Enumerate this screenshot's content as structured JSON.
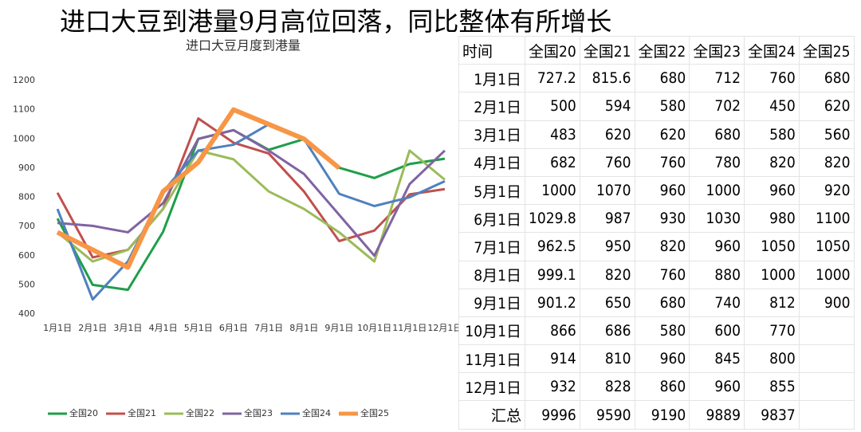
{
  "title": "进口大豆到港量9月高位回落，同比整体有所增长",
  "chart_data": {
    "type": "line",
    "title": "进口大豆月度到港量",
    "categories": [
      "1月1日",
      "2月1日",
      "3月1日",
      "4月1日",
      "5月1日",
      "6月1日",
      "7月1日",
      "8月1日",
      "9月1日",
      "10月1日",
      "11月1日",
      "12月1日"
    ],
    "series": [
      {
        "name": "全国20",
        "color": "#1e9e4a",
        "values": [
          727.2,
          500,
          483,
          682,
          1000,
          1029.8,
          962.5,
          999.1,
          901.2,
          866,
          914,
          932
        ]
      },
      {
        "name": "全国21",
        "color": "#c0504d",
        "values": [
          815.6,
          594,
          620,
          760,
          1070,
          987,
          950,
          820,
          650,
          686,
          810,
          828
        ]
      },
      {
        "name": "全国22",
        "color": "#9bbb59",
        "values": [
          680,
          580,
          620,
          760,
          960,
          930,
          820,
          760,
          680,
          580,
          960,
          860
        ]
      },
      {
        "name": "全国23",
        "color": "#8064a2",
        "values": [
          712,
          702,
          680,
          780,
          1000,
          1030,
          960,
          880,
          740,
          600,
          845,
          960
        ]
      },
      {
        "name": "全国24",
        "color": "#4f81bd",
        "values": [
          760,
          450,
          580,
          820,
          960,
          980,
          1050,
          1000,
          812,
          770,
          800,
          855
        ]
      },
      {
        "name": "全国25",
        "color": "#f79646",
        "values": [
          680,
          620,
          560,
          820,
          920,
          1100,
          1050,
          1000,
          900,
          null,
          null,
          null
        ]
      }
    ],
    "ylim": [
      400,
      1200
    ],
    "yticks": [
      400,
      500,
      600,
      700,
      800,
      900,
      1000,
      1100,
      1200
    ],
    "grid": false,
    "legend": "bottom"
  },
  "table": {
    "header": [
      "时间",
      "全国20",
      "全国21",
      "全国22",
      "全国23",
      "全国24",
      "全国25"
    ],
    "rows": [
      [
        "1月1日",
        727.2,
        815.6,
        680,
        712,
        760,
        680
      ],
      [
        "2月1日",
        500,
        594,
        580,
        702,
        450,
        620
      ],
      [
        "3月1日",
        483,
        620,
        620,
        680,
        580,
        560
      ],
      [
        "4月1日",
        682,
        760,
        760,
        780,
        820,
        820
      ],
      [
        "5月1日",
        1000,
        1070,
        960,
        1000,
        960,
        920
      ],
      [
        "6月1日",
        1029.8,
        987,
        930,
        1030,
        980,
        1100
      ],
      [
        "7月1日",
        962.5,
        950,
        820,
        960,
        1050,
        1050
      ],
      [
        "8月1日",
        999.1,
        820,
        760,
        880,
        1000,
        1000
      ],
      [
        "9月1日",
        901.2,
        650,
        680,
        740,
        812,
        900
      ],
      [
        "10月1日",
        866,
        686,
        580,
        600,
        770,
        null
      ],
      [
        "11月1日",
        914,
        810,
        960,
        845,
        800,
        null
      ],
      [
        "12月1日",
        932,
        828,
        860,
        960,
        855,
        null
      ],
      [
        "汇总",
        9996,
        9590,
        9190,
        9889,
        9837,
        null
      ]
    ]
  }
}
